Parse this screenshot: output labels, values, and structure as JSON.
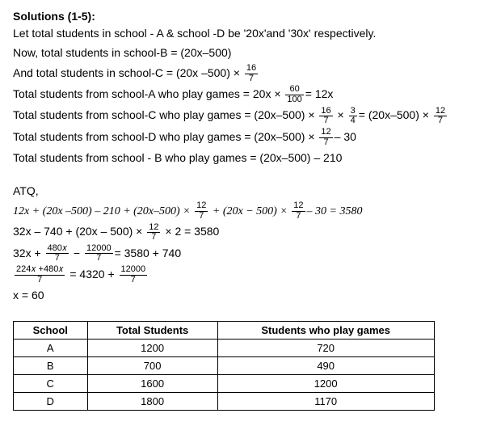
{
  "heading": "Solutions (1-5):",
  "l1": "Let total students in school - A & school -D be '20x'and '30x' respectively.",
  "l2": "Now, total students in school-B = (20x–500)",
  "l3_pre": "And total students in school-C = (20x –500) × ",
  "f16_7_num": "16",
  "f16_7_den": "7",
  "l4_pre": "Total students from school-A who play games = 20x × ",
  "f60_100_num": "60",
  "f60_100_den": "100",
  "l4_post": "= 12x",
  "l5_pre": "Total students from school-C who play games = (20x–500) × ",
  "l5_mid": " × ",
  "f3_4_num": "3",
  "f3_4_den": "4",
  "l5_eq": "= (20x–500) × ",
  "f12_7_num": "12",
  "f12_7_den": "7",
  "l6_pre": "Total students from school-D who play games = (20x–500) × ",
  "l6_post": "– 30",
  "l7": "Total students from school - B who play games = (20x–500) – 210",
  "atq": "ATQ,",
  "l8_a": "12x + (20x –500) – 210 + (20x–500) × ",
  "l8_b": " + (20x − 500) × ",
  "l8_c": "– 30 = 3580",
  "l9_a": "32x – 740 + (20x – 500) × ",
  "l9_b": " × 2 = 3580",
  "l10_a": "32x + ",
  "f480x_7_num": "480𝑥",
  "f480x_7_den": "7",
  "l10_b": " − ",
  "f12000_7_num": "12000",
  "f12000_7_den": "7",
  "l10_c": "= 3580 + 740",
  "f224_num": "224𝑥 +480𝑥",
  "f224_den": "7",
  "l11_b": " = 4320 + ",
  "l12": "x = 60",
  "table": {
    "headers": [
      "School",
      "Total Students",
      "Students who play games"
    ],
    "rows": [
      [
        "A",
        "1200",
        "720"
      ],
      [
        "B",
        "700",
        "490"
      ],
      [
        "C",
        "1600",
        "1200"
      ],
      [
        "D",
        "1800",
        "1170"
      ]
    ]
  }
}
